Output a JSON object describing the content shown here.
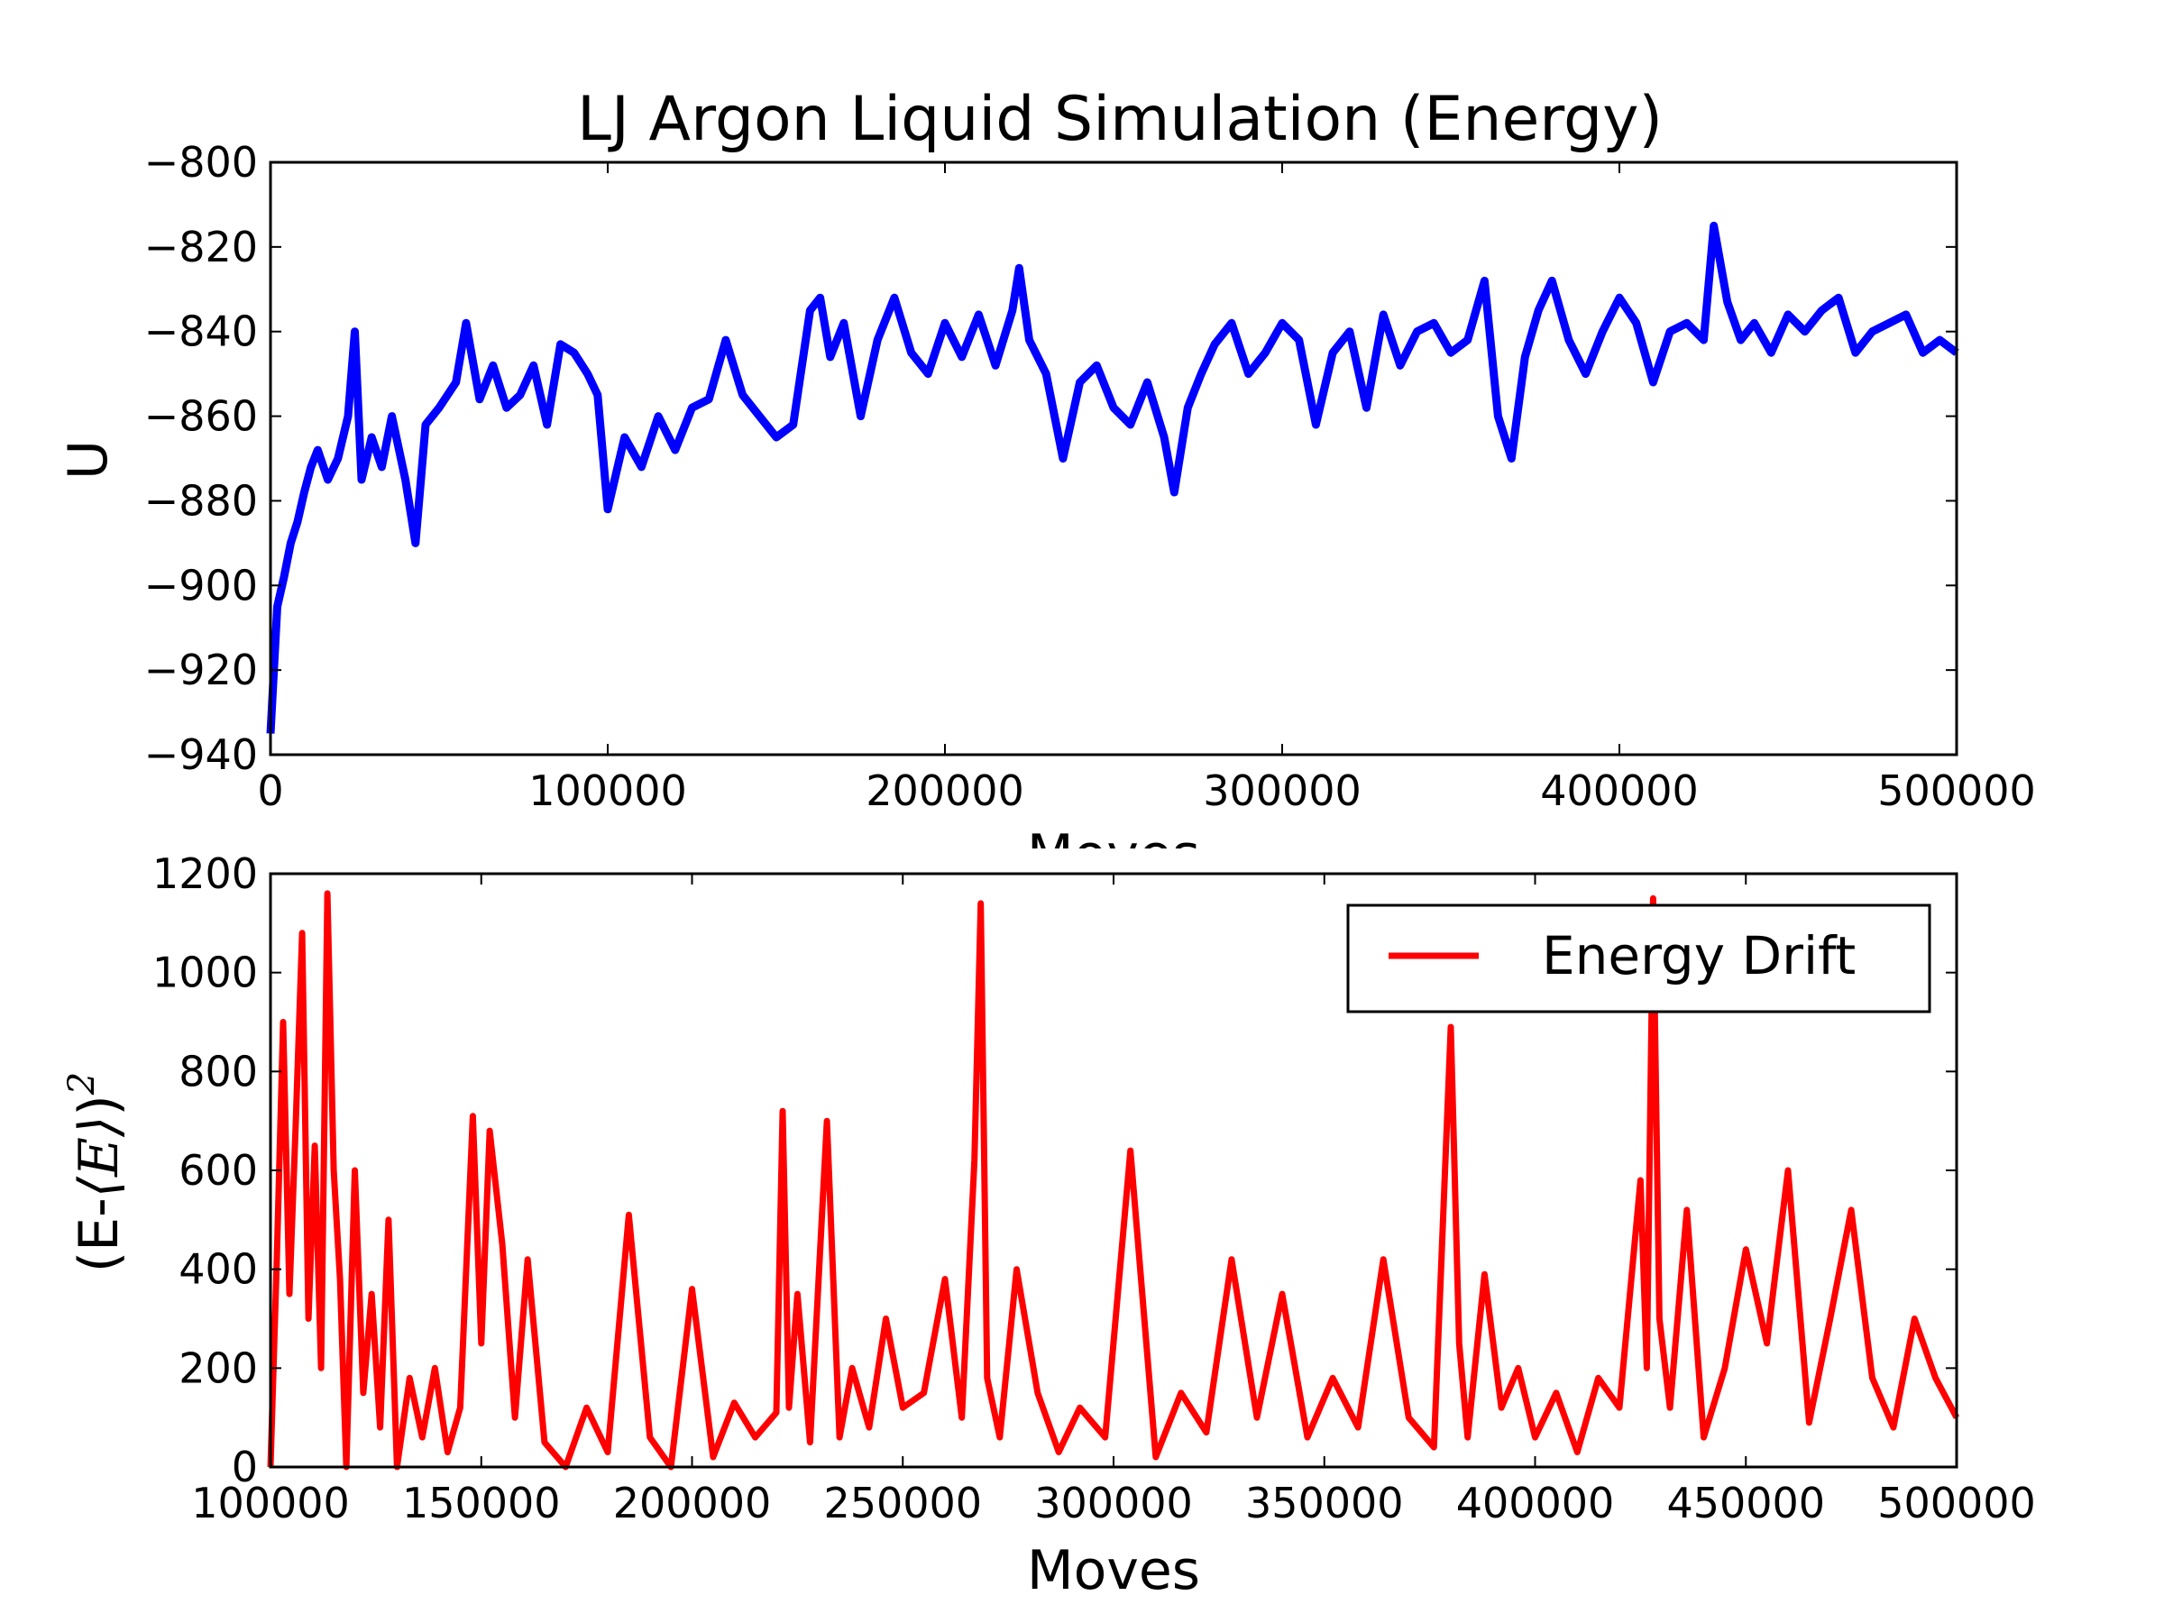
{
  "chart_data": [
    {
      "type": "line",
      "title": "LJ Argon Liquid Simulation (Energy)",
      "xlabel": "Moves",
      "ylabel": "U",
      "xlim": [
        0,
        500000
      ],
      "ylim": [
        -940,
        -800
      ],
      "xticks": [
        0,
        100000,
        200000,
        300000,
        400000,
        500000
      ],
      "yticks": [
        -940,
        -920,
        -900,
        -880,
        -860,
        -840,
        -820,
        -800
      ],
      "xtick_labels": [
        "0",
        "100000",
        "200000",
        "300000",
        "400000",
        "500000"
      ],
      "ytick_labels": [
        "−940",
        "−920",
        "−900",
        "−880",
        "−860",
        "−840",
        "−820",
        "−800"
      ],
      "grid": false,
      "series": [
        {
          "color": "#0000ff",
          "x": [
            0,
            2000,
            4000,
            6000,
            8000,
            10000,
            12000,
            14000,
            17000,
            20000,
            23000,
            25000,
            27000,
            30000,
            33000,
            36000,
            40000,
            43000,
            46000,
            50000,
            55000,
            58000,
            62000,
            66000,
            70000,
            74000,
            78000,
            82000,
            86000,
            90000,
            94000,
            97000,
            100000,
            105000,
            110000,
            115000,
            120000,
            125000,
            130000,
            135000,
            140000,
            145000,
            150000,
            155000,
            160000,
            163000,
            166000,
            170000,
            175000,
            180000,
            185000,
            190000,
            195000,
            200000,
            205000,
            210000,
            215000,
            220000,
            222000,
            225000,
            230000,
            235000,
            240000,
            245000,
            250000,
            255000,
            260000,
            265000,
            268000,
            272000,
            276000,
            280000,
            285000,
            290000,
            295000,
            300000,
            305000,
            310000,
            315000,
            320000,
            325000,
            330000,
            335000,
            340000,
            345000,
            350000,
            355000,
            360000,
            364000,
            368000,
            372000,
            376000,
            380000,
            385000,
            390000,
            395000,
            400000,
            405000,
            410000,
            415000,
            420000,
            425000,
            428000,
            432000,
            436000,
            440000,
            445000,
            450000,
            455000,
            460000,
            465000,
            470000,
            475000,
            480000,
            485000,
            490000,
            495000,
            500000
          ],
          "y": [
            -935,
            -905,
            -898,
            -890,
            -885,
            -878,
            -872,
            -868,
            -875,
            -870,
            -860,
            -840,
            -875,
            -865,
            -872,
            -860,
            -875,
            -890,
            -862,
            -858,
            -852,
            -838,
            -856,
            -848,
            -858,
            -855,
            -848,
            -862,
            -843,
            -845,
            -850,
            -855,
            -882,
            -865,
            -872,
            -860,
            -868,
            -858,
            -856,
            -842,
            -855,
            -860,
            -865,
            -862,
            -835,
            -832,
            -846,
            -838,
            -860,
            -842,
            -832,
            -845,
            -850,
            -838,
            -846,
            -836,
            -848,
            -835,
            -825,
            -842,
            -850,
            -870,
            -852,
            -848,
            -858,
            -862,
            -852,
            -865,
            -878,
            -858,
            -850,
            -843,
            -838,
            -850,
            -845,
            -838,
            -842,
            -862,
            -845,
            -840,
            -858,
            -836,
            -848,
            -840,
            -838,
            -845,
            -842,
            -828,
            -860,
            -870,
            -846,
            -835,
            -828,
            -842,
            -850,
            -840,
            -832,
            -838,
            -852,
            -840,
            -838,
            -842,
            -815,
            -833,
            -842,
            -838,
            -845,
            -836,
            -840,
            -835,
            -832,
            -845,
            -840,
            -838,
            -836,
            -845,
            -842,
            -845
          ]
        }
      ]
    },
    {
      "type": "line",
      "title": "",
      "xlabel": "Moves",
      "ylabel_prefix": "(E-",
      "ylabel_math": "⟨E⟩",
      "ylabel_suffix": ")",
      "ylabel_sup": "2",
      "xlim": [
        100000,
        500000
      ],
      "ylim": [
        0,
        1200
      ],
      "xticks": [
        100000,
        150000,
        200000,
        250000,
        300000,
        350000,
        400000,
        450000,
        500000
      ],
      "yticks": [
        0,
        200,
        400,
        600,
        800,
        1000,
        1200
      ],
      "xtick_labels": [
        "100000",
        "150000",
        "200000",
        "250000",
        "300000",
        "350000",
        "400000",
        "450000",
        "500000"
      ],
      "ytick_labels": [
        "0",
        "200",
        "400",
        "600",
        "800",
        "1000",
        "1200"
      ],
      "grid": false,
      "legend": {
        "position": "upper right",
        "entries": [
          {
            "label": "Energy Drift",
            "color": "#ff0000"
          }
        ]
      },
      "series": [
        {
          "name": "Energy Drift",
          "color": "#ff0000",
          "x": [
            100000,
            101500,
            103000,
            104500,
            106000,
            107500,
            109000,
            110500,
            112000,
            113500,
            115000,
            116500,
            118000,
            120000,
            122000,
            124000,
            126000,
            128000,
            130000,
            133000,
            136000,
            139000,
            142000,
            145000,
            148000,
            150000,
            152000,
            155000,
            158000,
            161000,
            165000,
            170000,
            175000,
            180000,
            185000,
            190000,
            195000,
            200000,
            205000,
            210000,
            215000,
            220000,
            221500,
            223000,
            225000,
            228000,
            232000,
            235000,
            238000,
            242000,
            246000,
            250000,
            255000,
            260000,
            264000,
            267000,
            268500,
            270000,
            273000,
            277000,
            282000,
            287000,
            292000,
            298000,
            304000,
            310000,
            316000,
            322000,
            328000,
            334000,
            340000,
            346000,
            352000,
            358000,
            364000,
            370000,
            376000,
            380000,
            382000,
            384000,
            388000,
            392000,
            396000,
            400000,
            405000,
            410000,
            415000,
            420000,
            425000,
            426500,
            428000,
            429500,
            432000,
            436000,
            440000,
            445000,
            450000,
            455000,
            460000,
            465000,
            470000,
            475000,
            480000,
            485000,
            490000,
            495000,
            500000
          ],
          "y": [
            0,
            420,
            900,
            350,
            700,
            1080,
            300,
            650,
            200,
            1160,
            600,
            380,
            0,
            600,
            150,
            350,
            80,
            500,
            0,
            180,
            60,
            200,
            30,
            120,
            710,
            250,
            680,
            450,
            100,
            420,
            50,
            0,
            120,
            30,
            510,
            60,
            0,
            360,
            20,
            130,
            60,
            110,
            720,
            120,
            350,
            50,
            700,
            60,
            200,
            80,
            300,
            120,
            150,
            380,
            100,
            620,
            1140,
            180,
            60,
            400,
            150,
            30,
            120,
            60,
            640,
            20,
            150,
            70,
            420,
            100,
            350,
            60,
            180,
            80,
            420,
            100,
            40,
            890,
            250,
            60,
            390,
            120,
            200,
            60,
            150,
            30,
            180,
            120,
            580,
            200,
            1150,
            300,
            120,
            520,
            60,
            200,
            440,
            250,
            600,
            90,
            300,
            520,
            180,
            80,
            300,
            180,
            100
          ]
        }
      ]
    }
  ]
}
